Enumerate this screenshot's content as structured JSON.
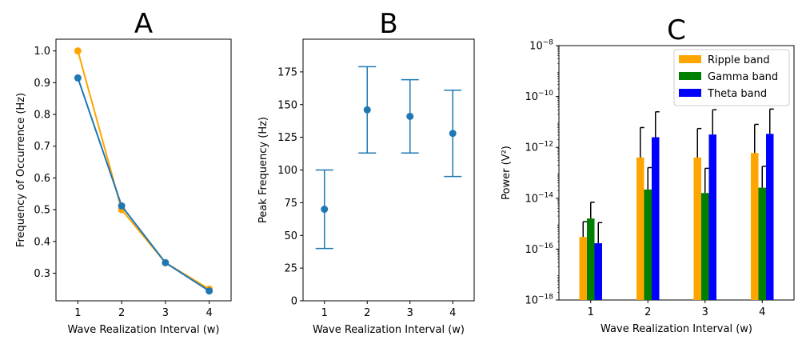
{
  "chart_data": [
    {
      "type": "line",
      "title": "A",
      "xlabel": "Wave Realization Interval (w)",
      "ylabel": "Frequency of Occurrence (Hz)",
      "x": [
        1,
        2,
        3,
        4
      ],
      "xticks": [
        "1",
        "2",
        "3",
        "4"
      ],
      "yticks": [
        "0.3",
        "0.4",
        "0.5",
        "0.6",
        "0.7",
        "0.8",
        "0.9",
        "1.0"
      ],
      "xlim": [
        0.5,
        4.5
      ],
      "ylim": [
        0.213,
        1.037
      ],
      "series": [
        {
          "color": "#ffa500",
          "values": [
            1.0,
            0.5,
            0.333,
            0.25
          ]
        },
        {
          "color": "#1f77b4",
          "values": [
            0.915,
            0.512,
            0.333,
            0.244
          ]
        }
      ]
    },
    {
      "type": "scatter",
      "title": "B",
      "xlabel": "Wave Realization Interval (w)",
      "ylabel": "Peak Frequency (Hz)",
      "x": [
        1,
        2,
        3,
        4
      ],
      "xticks": [
        "1",
        "2",
        "3",
        "4"
      ],
      "yticks": [
        "0",
        "25",
        "50",
        "75",
        "100",
        "125",
        "150",
        "175"
      ],
      "xlim": [
        0.5,
        4.5
      ],
      "ylim": [
        0,
        200
      ],
      "series": [
        {
          "color": "#1f77b4",
          "values": [
            70,
            146,
            141,
            128
          ],
          "err_low": [
            40,
            113,
            113,
            95
          ],
          "err_high": [
            100,
            179,
            169,
            161
          ]
        }
      ]
    },
    {
      "type": "bar",
      "title": "C",
      "xlabel": "Wave Realization Interval (w)",
      "ylabel": "Power (V²)",
      "yscale": "log",
      "categories": [
        "1",
        "2",
        "3",
        "4"
      ],
      "ylim_exp": [
        -18,
        -8
      ],
      "yticks": [
        {
          "base": "10",
          "exp": "−18"
        },
        {
          "base": "10",
          "exp": "−16"
        },
        {
          "base": "10",
          "exp": "−14"
        },
        {
          "base": "10",
          "exp": "−12"
        },
        {
          "base": "10",
          "exp": "−10"
        },
        {
          "base": "10",
          "exp": "−8"
        }
      ],
      "legend_position": "top-right",
      "series": [
        {
          "name": "Ripple band",
          "color": "#ffa500",
          "values": [
            3e-16,
            4e-13,
            4e-13,
            6e-13
          ],
          "err_high": [
            1.2e-15,
            6e-12,
            5.5e-12,
            8e-12
          ]
        },
        {
          "name": "Gamma band",
          "color": "#008000",
          "values": [
            1.6e-15,
            2.2e-14,
            1.6e-14,
            2.6e-14
          ],
          "err_high": [
            7e-15,
            1.6e-13,
            1.5e-13,
            1.8e-13
          ]
        },
        {
          "name": "Theta band",
          "color": "#0000ff",
          "values": [
            1.7e-16,
            2.5e-12,
            3.2e-12,
            3.4e-12
          ],
          "err_high": [
            1.1e-15,
            2.5e-11,
            3e-11,
            3.2e-11
          ]
        }
      ]
    }
  ]
}
